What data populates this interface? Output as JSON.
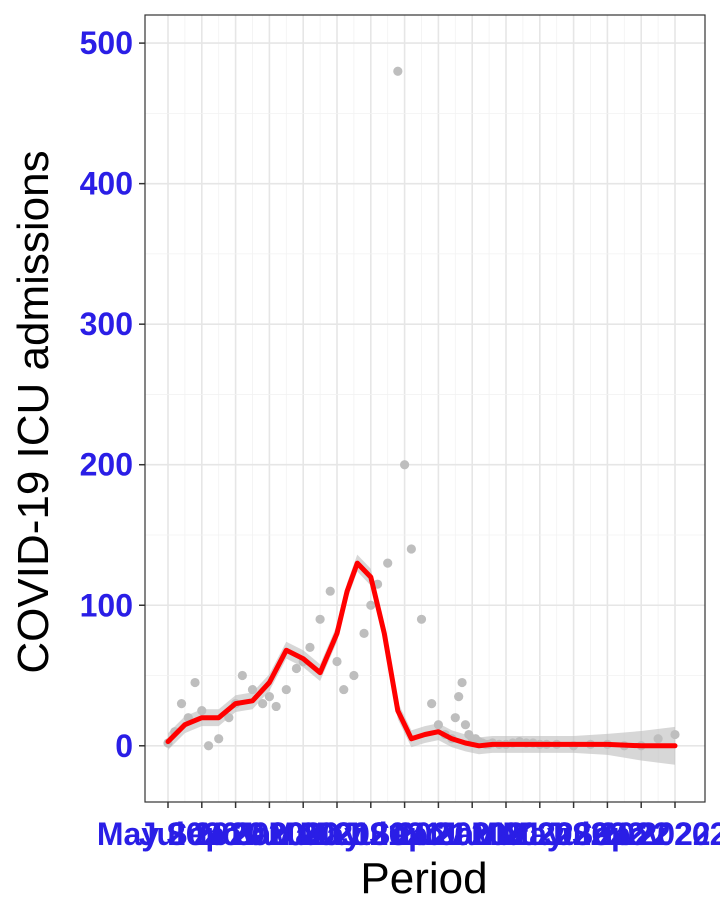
{
  "chart_data": {
    "type": "scatter",
    "title": "",
    "xlabel": "Period",
    "ylabel": "COVID-19 ICU admissions",
    "ylim": [
      -40,
      520
    ],
    "yticks": [
      "0",
      "100",
      "200",
      "300",
      "400",
      "500"
    ],
    "xticks": [
      "May 2020",
      "Jul 2020",
      "Sep 2020",
      "Nov 2020",
      "Jan 2021",
      "Mar 2021",
      "May 2021",
      "Jul 2021",
      "Sep 2021",
      "Nov 2021",
      "Jan 2022",
      "Mar 2022",
      "May 2022",
      "Jul 2022",
      "Sep 2022",
      "Nov 2022"
    ],
    "grid": true,
    "colors": {
      "points": "#bebebe",
      "smooth": "#ff0000",
      "ribbon": "#bdbdbd",
      "tick_text": "#2a1ee6",
      "panel_border": "#333333"
    },
    "series": [
      {
        "kind": "points",
        "x": [
          0,
          0.2,
          0.4,
          0.6,
          0.8,
          1.0,
          1.2,
          1.5,
          1.8,
          2.0,
          2.2,
          2.5,
          2.8,
          3.0,
          3.2,
          3.5,
          3.8,
          4.0,
          4.2,
          4.5,
          4.8,
          5.0,
          5.2,
          5.5,
          5.8,
          6.0,
          6.2,
          6.5,
          6.8,
          7.0,
          7.2,
          7.5,
          7.8,
          8.0,
          8.2,
          8.4,
          8.5,
          8.6,
          8.7,
          8.8,
          8.9,
          9.0,
          9.1,
          9.2,
          9.3,
          9.4,
          9.5,
          9.6,
          9.8,
          10.0,
          10.2,
          10.4,
          10.6,
          10.8,
          11.0,
          11.2,
          11.5,
          12.0,
          12.5,
          13.0,
          13.5,
          14.0,
          14.5,
          15.0
        ],
        "values": [
          2,
          10,
          30,
          20,
          45,
          25,
          0,
          5,
          20,
          30,
          50,
          40,
          30,
          35,
          28,
          40,
          55,
          60,
          70,
          90,
          110,
          60,
          40,
          50,
          80,
          100,
          115,
          130,
          480,
          200,
          140,
          90,
          30,
          15,
          8,
          5,
          20,
          35,
          45,
          15,
          8,
          5,
          5,
          3,
          2,
          1,
          1,
          2,
          1,
          1,
          2,
          3,
          2,
          2,
          1,
          1,
          1,
          0,
          1,
          1,
          0,
          0,
          5,
          8
        ]
      },
      {
        "kind": "smooth",
        "name": "",
        "x": [
          0,
          0.5,
          1.0,
          1.5,
          2.0,
          2.5,
          3.0,
          3.5,
          4.0,
          4.5,
          5.0,
          5.3,
          5.6,
          6.0,
          6.4,
          6.8,
          7.2,
          7.6,
          8.0,
          8.4,
          8.8,
          9.2,
          9.6,
          10.0,
          10.5,
          11.0,
          11.5,
          12.0,
          13.0,
          14.0,
          15.0
        ],
        "values": [
          3,
          15,
          20,
          20,
          30,
          32,
          45,
          68,
          62,
          52,
          80,
          110,
          130,
          120,
          80,
          25,
          5,
          8,
          10,
          5,
          2,
          0,
          1,
          1,
          1,
          1,
          1,
          1,
          1,
          0,
          0
        ]
      }
    ]
  }
}
